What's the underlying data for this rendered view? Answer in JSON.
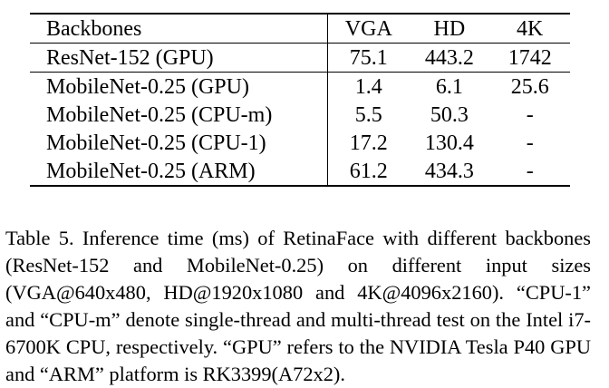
{
  "table": {
    "columns": [
      "Backbones",
      "VGA",
      "HD",
      "4K"
    ],
    "rows": [
      [
        "ResNet-152 (GPU)",
        "75.1",
        "443.2",
        "1742"
      ],
      [
        "MobileNet-0.25 (GPU)",
        "1.4",
        "6.1",
        "25.6"
      ],
      [
        "MobileNet-0.25 (CPU-m)",
        "5.5",
        "50.3",
        "-"
      ],
      [
        "MobileNet-0.25 (CPU-1)",
        "17.2",
        "130.4",
        "-"
      ],
      [
        "MobileNet-0.25 (ARM)",
        "61.2",
        "434.3",
        "-"
      ]
    ]
  },
  "caption": "Table 5. Inference time (ms) of RetinaFace with different backbones (ResNet-152 and MobileNet-0.25) on different input sizes (VGA@640x480, HD@1920x1080 and 4K@4096x2160). “CPU-1” and “CPU-m” denote single-thread and multi-thread test on the Intel i7-6700K CPU, respectively. “GPU” refers to the NVIDIA Tesla P40 GPU and “ARM” platform is RK3399(A72x2)."
}
